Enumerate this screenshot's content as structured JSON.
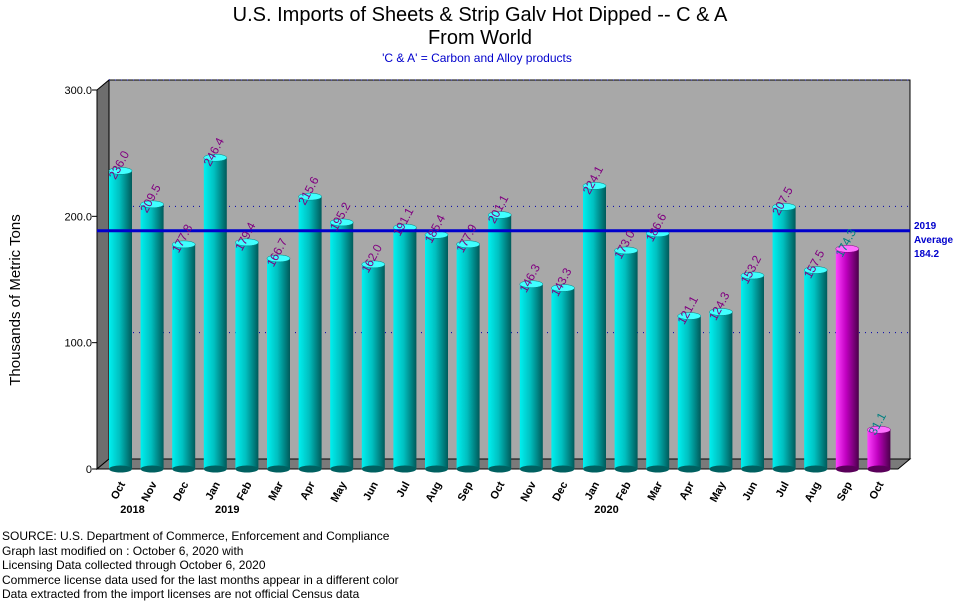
{
  "chart_data": {
    "type": "bar",
    "title_line1": "U.S. Imports of Sheets & Strip Galv Hot Dipped -- C & A",
    "title_line2": "From World",
    "subtitle": "'C & A' = Carbon and Alloy products",
    "ylabel": "Thousands of Metric Tons",
    "ylim": [
      0,
      300
    ],
    "yticks": [
      "0",
      "100.0",
      "200.0",
      "300.0"
    ],
    "ytick_values": [
      0,
      100,
      200,
      300
    ],
    "grid": "dotted horizontal",
    "categories": [
      "Oct",
      "Nov",
      "Dec",
      "Jan",
      "Feb",
      "Mar",
      "Apr",
      "May",
      "Jun",
      "Jul",
      "Aug",
      "Sep",
      "Oct",
      "Nov",
      "Dec",
      "Jan",
      "Feb",
      "Mar",
      "Apr",
      "May",
      "Jun",
      "Jul",
      "Aug",
      "Sep",
      "Oct"
    ],
    "values": [
      236.0,
      209.5,
      177.8,
      246.4,
      179.4,
      166.7,
      215.6,
      195.2,
      162.0,
      191.1,
      185.4,
      177.9,
      201.1,
      146.3,
      143.3,
      224.1,
      173.0,
      186.6,
      121.1,
      124.3,
      153.2,
      207.5,
      157.5,
      174.3,
      31.1
    ],
    "value_labels": [
      "236.0",
      "209.5",
      "177.8",
      "246.4",
      "179.4",
      "166.7",
      "215.6",
      "195.2",
      "162.0",
      "191.1",
      "185.4",
      "177.9",
      "201.1",
      "146.3",
      "143.3",
      "224.1",
      "173.0",
      "186.6",
      "121.1",
      "124.3",
      "153.2",
      "207.5",
      "157.5",
      "174.3",
      "31.1"
    ],
    "license_data_from_index": 23,
    "years": [
      {
        "label": "2018",
        "index": 0
      },
      {
        "label": "2019",
        "index": 3
      },
      {
        "label": "2020",
        "index": 15
      }
    ],
    "average": {
      "value": 184.2,
      "line1": "2019",
      "line2": "Average",
      "line3": "184.2"
    },
    "colors": {
      "census_bar": "#00c0c0",
      "license_bar": "#c000c0",
      "census_label": "#800080",
      "license_label": "#008080",
      "average_line": "#0000cc",
      "plot_bg": "#a8a8a8"
    }
  },
  "footer": {
    "line1": "SOURCE: U.S. Department of Commerce, Enforcement and Compliance",
    "line2": "Graph last modified on : October 6, 2020    with",
    "line3": "Licensing Data collected through October 6, 2020",
    "line4": "Commerce license data used for the last months appear in a different color",
    "line5": "Data extracted from the import licenses are not official Census data"
  }
}
